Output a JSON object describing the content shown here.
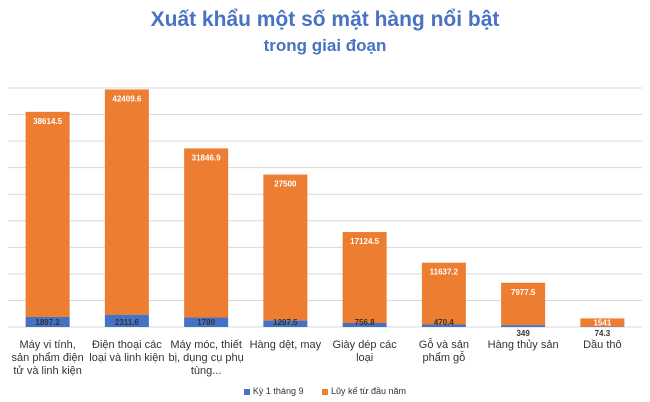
{
  "chart_data": {
    "type": "bar",
    "stacked": true,
    "title": "Xuất khẩu một số mặt hàng nổi bật",
    "subtitle": "trong giai đoạn",
    "categories": [
      "Máy vi tính, sản phẩm điện tử và linh kiện",
      "Điện thoại các loại và linh kiện",
      "Máy móc, thiết bị, dụng cụ phụ tùng...",
      "Hàng dệt, may",
      "Giày dép các loại",
      "Gỗ và sản phẩm gỗ",
      "Hàng thủy sản",
      "Dầu thô"
    ],
    "series": [
      {
        "name": "Kỳ 1 tháng 9",
        "color": "#4472c4",
        "values": [
          1897.2,
          2311.6,
          1780,
          1207.5,
          756.8,
          470.4,
          349,
          74.3
        ]
      },
      {
        "name": "Lũy kế từ đầu năm",
        "color": "#ed7d31",
        "values": [
          38614.5,
          42409.6,
          31846.9,
          27500,
          17124.5,
          11637.2,
          7977.5,
          1541
        ]
      }
    ],
    "ylim": [
      0,
      45000
    ],
    "grid": true,
    "y_tick_labels_shown": false,
    "legend": "bottom"
  }
}
